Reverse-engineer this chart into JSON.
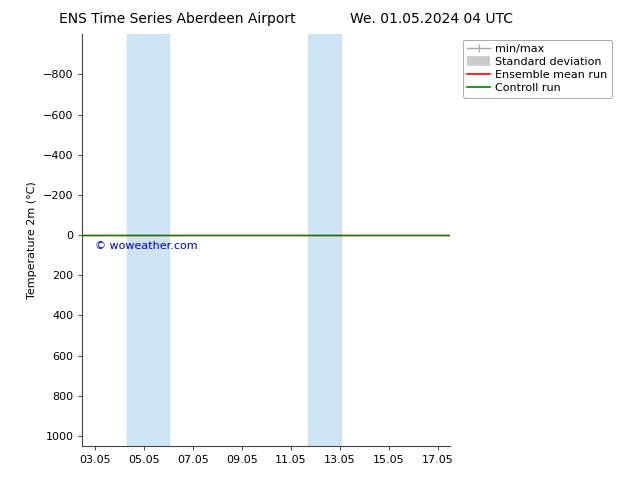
{
  "title_left": "ENS Time Series Aberdeen Airport",
  "title_right": "We. 01.05.2024 04 UTC",
  "ylabel": "Temperature 2m (°C)",
  "ylim_top": -1000,
  "ylim_bottom": 1050,
  "yticks": [
    -800,
    -600,
    -400,
    -200,
    0,
    200,
    400,
    600,
    800,
    1000
  ],
  "xlim": [
    2.5,
    17.5
  ],
  "xtick_labels": [
    "03.05",
    "05.05",
    "07.05",
    "09.05",
    "11.05",
    "13.05",
    "15.05",
    "17.05"
  ],
  "xtick_positions": [
    3,
    5,
    7,
    9,
    11,
    13,
    15,
    17
  ],
  "blue_bands": [
    {
      "start": 4.3,
      "end": 6.05
    },
    {
      "start": 11.7,
      "end": 13.05
    }
  ],
  "green_line_y": 0,
  "red_line_y": 0,
  "watermark": "© woweather.com",
  "watermark_color": "#0000cc",
  "background_color": "#ffffff",
  "plot_bg_color": "#ffffff",
  "band_color": "#cde4f4",
  "green_color": "#008000",
  "red_color": "#ff0000",
  "minmax_color": "#aaaaaa",
  "std_color": "#cccccc",
  "legend_items": [
    "min/max",
    "Standard deviation",
    "Ensemble mean run",
    "Controll run"
  ],
  "legend_colors": [
    "#aaaaaa",
    "#cccccc",
    "#ff0000",
    "#008000"
  ],
  "title_fontsize": 10,
  "axis_fontsize": 8,
  "tick_fontsize": 8,
  "legend_fontsize": 8
}
